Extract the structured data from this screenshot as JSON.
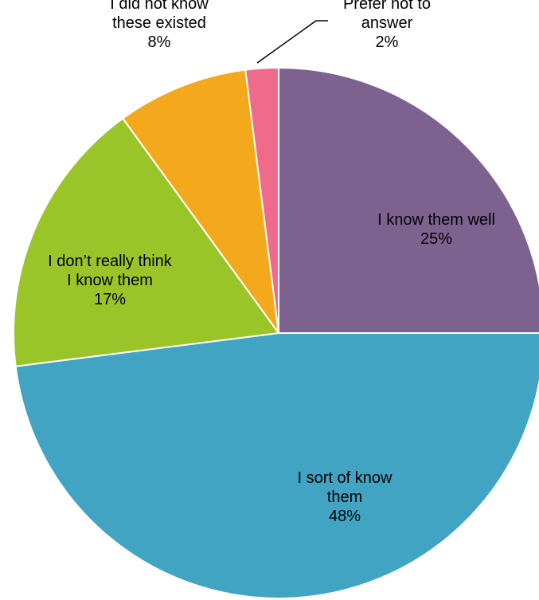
{
  "chart_data": {
    "type": "pie",
    "title": "",
    "start_angle_deg": 0,
    "direction": "clockwise",
    "slices": [
      {
        "label_lines": [
          "I know them well"
        ],
        "value": 25,
        "display": "25%",
        "color": "#7d6290"
      },
      {
        "label_lines": [
          "I sort of know",
          "them"
        ],
        "value": 48,
        "display": "48%",
        "color": "#40a4c2"
      },
      {
        "label_lines": [
          "I don’t really think",
          "I know them"
        ],
        "value": 17,
        "display": "17%",
        "color": "#9ac528"
      },
      {
        "label_lines": [
          "I did not know",
          "these existed"
        ],
        "value": 8,
        "display": "8%",
        "color": "#f4a81b"
      },
      {
        "label_lines": [
          "Prefer not to",
          "answer"
        ],
        "value": 2,
        "display": "2%",
        "color": "#f06a8c"
      }
    ],
    "legend": "none",
    "labels": "category-and-percent"
  }
}
